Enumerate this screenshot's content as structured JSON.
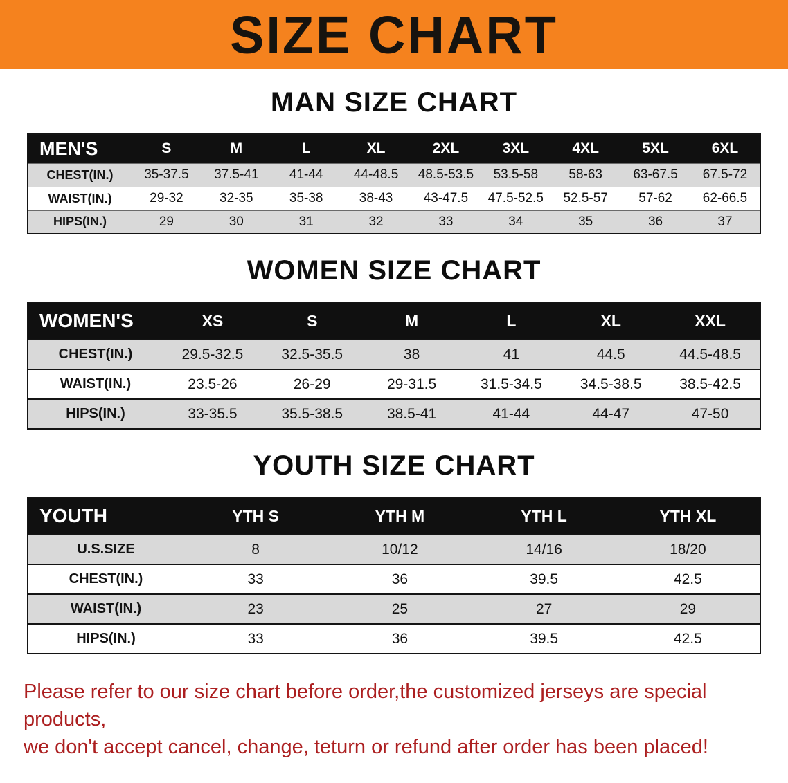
{
  "banner": {
    "title": "SIZE CHART",
    "bg_color": "#f5821e",
    "text_color": "#16130f"
  },
  "note": {
    "line1": "Please refer to our size chart before order,the customized jerseys are special products,",
    "line2": "we don't accept cancel, change, teturn or refund after order has been placed!",
    "color": "#ac1f20"
  },
  "chart_data": [
    {
      "type": "table",
      "title": "MAN SIZE CHART",
      "header": [
        "MEN'S",
        "S",
        "M",
        "L",
        "XL",
        "2XL",
        "3XL",
        "4XL",
        "5XL",
        "6XL"
      ],
      "rows": [
        [
          "CHEST(IN.)",
          "35-37.5",
          "37.5-41",
          "41-44",
          "44-48.5",
          "48.5-53.5",
          "53.5-58",
          "58-63",
          "63-67.5",
          "67.5-72"
        ],
        [
          "WAIST(IN.)",
          "29-32",
          "32-35",
          "35-38",
          "38-43",
          "43-47.5",
          "47.5-52.5",
          "52.5-57",
          "57-62",
          "62-66.5"
        ],
        [
          "HIPS(IN.)",
          "29",
          "30",
          "31",
          "32",
          "33",
          "34",
          "35",
          "36",
          "37"
        ]
      ]
    },
    {
      "type": "table",
      "title": "WOMEN SIZE CHART",
      "header": [
        "WOMEN'S",
        "XS",
        "S",
        "M",
        "L",
        "XL",
        "XXL"
      ],
      "rows": [
        [
          "CHEST(IN.)",
          "29.5-32.5",
          "32.5-35.5",
          "38",
          "41",
          "44.5",
          "44.5-48.5"
        ],
        [
          "WAIST(IN.)",
          "23.5-26",
          "26-29",
          "29-31.5",
          "31.5-34.5",
          "34.5-38.5",
          "38.5-42.5"
        ],
        [
          "HIPS(IN.)",
          "33-35.5",
          "35.5-38.5",
          "38.5-41",
          "41-44",
          "44-47",
          "47-50"
        ]
      ]
    },
    {
      "type": "table",
      "title": "YOUTH SIZE CHART",
      "header": [
        "YOUTH",
        "YTH S",
        "YTH M",
        "YTH L",
        "YTH XL"
      ],
      "rows": [
        [
          "U.S.SIZE",
          "8",
          "10/12",
          "14/16",
          "18/20"
        ],
        [
          "CHEST(IN.)",
          "33",
          "36",
          "39.5",
          "42.5"
        ],
        [
          "WAIST(IN.)",
          "23",
          "25",
          "27",
          "29"
        ],
        [
          "HIPS(IN.)",
          "33",
          "36",
          "39.5",
          "42.5"
        ]
      ]
    }
  ]
}
